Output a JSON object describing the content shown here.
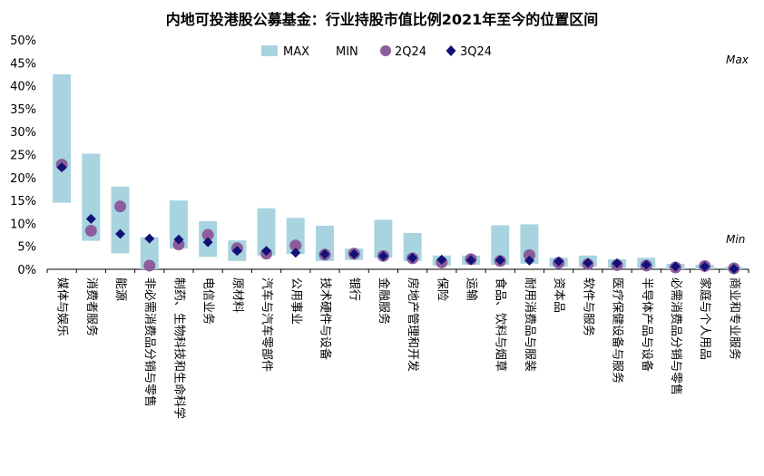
{
  "chart_data": {
    "type": "bar",
    "title": "内地可投港股公募基金：行业持股市值比例2021年至今的位置区间",
    "ylim": [
      0,
      50
    ],
    "yticks": [
      "0%",
      "5%",
      "10%",
      "15%",
      "20%",
      "25%",
      "30%",
      "35%",
      "40%",
      "45%",
      "50%"
    ],
    "categories": [
      "媒体与娱乐",
      "消费者服务",
      "能源",
      "非必需消费品分销与零售",
      "制药、生物科技和生命科学",
      "电信业务",
      "原材料",
      "汽车与汽车零部件",
      "公用事业",
      "技术硬件与设备",
      "银行",
      "金融服务",
      "房地产管理和开发",
      "保险",
      "运输",
      "食品、饮料与烟草",
      "耐用消费品与服装",
      "资本品",
      "软件与服务",
      "医疗保健设备与服务",
      "半导体产品与设备",
      "必需消费品分销与零售",
      "家庭与个人用品",
      "商业和专业服务"
    ],
    "series": [
      {
        "name": "MAX",
        "type": "range-bar",
        "color": "#a8d4e0",
        "values": [
          42.5,
          25.2,
          18.0,
          7.0,
          15.0,
          10.5,
          6.3,
          13.3,
          11.2,
          9.5,
          4.5,
          10.8,
          7.9,
          3.0,
          3.0,
          9.6,
          9.8,
          2.5,
          3.0,
          2.2,
          2.5,
          1.2,
          1.0,
          0.5
        ]
      },
      {
        "name": "MIN",
        "type": "range-bar-base",
        "values": [
          14.5,
          6.2,
          3.5,
          0.0,
          4.5,
          2.7,
          1.8,
          3.0,
          3.3,
          1.8,
          2.0,
          2.5,
          1.8,
          0.8,
          1.0,
          1.0,
          1.2,
          0.5,
          0.5,
          0.3,
          0.3,
          0.0,
          0.0,
          0.0
        ]
      },
      {
        "name": "2Q24",
        "type": "circle",
        "color": "#8c5c9c",
        "values": [
          22.8,
          8.4,
          13.7,
          0.8,
          5.4,
          7.5,
          4.6,
          3.4,
          5.2,
          3.2,
          3.4,
          2.9,
          2.4,
          1.5,
          2.2,
          1.8,
          3.1,
          1.4,
          1.1,
          0.9,
          0.8,
          0.4,
          0.7,
          0.2
        ]
      },
      {
        "name": "3Q24",
        "type": "diamond",
        "color": "#111177",
        "values": [
          22.2,
          11.0,
          7.7,
          6.7,
          6.5,
          5.9,
          4.0,
          4.0,
          3.6,
          3.3,
          3.3,
          2.9,
          2.5,
          2.1,
          2.0,
          2.0,
          1.9,
          1.7,
          1.4,
          1.3,
          1.0,
          0.6,
          0.6,
          0.1
        ]
      }
    ],
    "legend": {
      "position": "top",
      "labels": [
        "MAX",
        "MIN",
        "2Q24",
        "3Q24"
      ]
    },
    "annotations": [
      "Max",
      "Min"
    ]
  }
}
